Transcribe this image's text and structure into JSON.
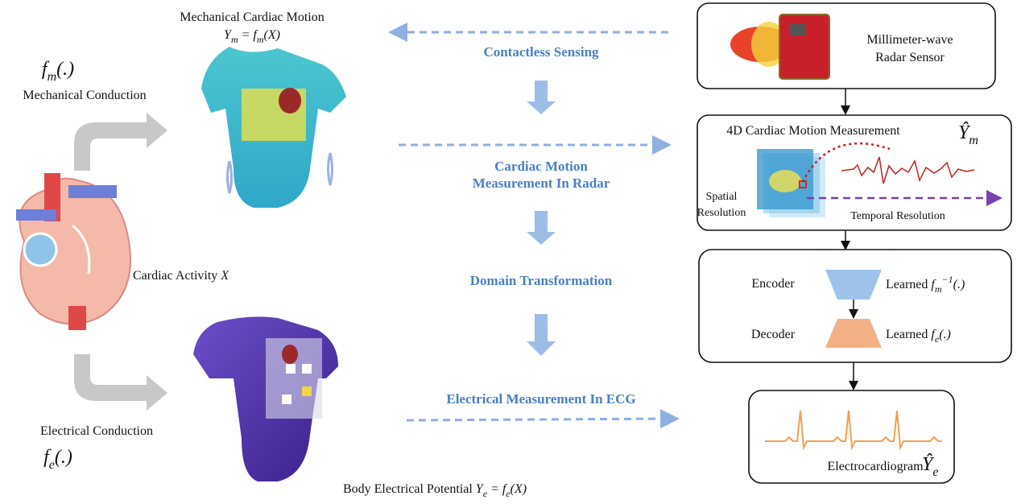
{
  "left": {
    "mech_func": [
      {
        "text": "f",
        "style": "math"
      },
      {
        "text": "m",
        "style": "sub"
      },
      {
        "text": "(.)",
        "style": "math"
      }
    ],
    "mech_label": "Mechanical Conduction",
    "activity": [
      {
        "text": "Cardiac Activity "
      },
      {
        "text": "X",
        "style": "math"
      }
    ],
    "elec_label": "Electrical Conduction",
    "elec_func": [
      {
        "text": "f",
        "style": "math"
      },
      {
        "text": "e",
        "style": "sub"
      },
      {
        "text": "(.)",
        "style": "math"
      }
    ]
  },
  "torso_top": {
    "title": "Mechanical Cardiac Motion",
    "formula": [
      {
        "text": "Y",
        "style": "math"
      },
      {
        "text": "m",
        "style": "sub"
      },
      {
        "text": " = f",
        "style": "math"
      },
      {
        "text": "m",
        "style": "sub"
      },
      {
        "text": "(X)",
        "style": "math"
      }
    ]
  },
  "torso_bottom": {
    "caption": [
      {
        "text": "Body Electrical Potential "
      },
      {
        "text": "Y",
        "style": "math"
      },
      {
        "text": "e",
        "style": "sub"
      },
      {
        "text": " = f",
        "style": "math"
      },
      {
        "text": "e",
        "style": "sub"
      },
      {
        "text": "(X)",
        "style": "math"
      }
    ]
  },
  "center": {
    "step1": "Contactless Sensing",
    "step2": [
      "Cardiac Motion",
      "Measurement In Radar"
    ],
    "step3": "Domain Transformation",
    "step4": "Electrical Measurement In ECG"
  },
  "right": {
    "radar": [
      "Millimeter-wave",
      "Radar Sensor"
    ],
    "measure_title": "4D Cardiac Motion Measurement",
    "measure_symbol": [
      {
        "text": "Ŷ",
        "style": "math"
      },
      {
        "text": "m",
        "style": "sub"
      }
    ],
    "spatial": [
      "Spatial",
      "Resolution"
    ],
    "temporal": "Temporal Resolution",
    "encoder": "Encoder",
    "encoder_fn": [
      {
        "text": "Learned "
      },
      {
        "text": "f",
        "style": "math"
      },
      {
        "text": "m",
        "style": "sub"
      },
      {
        "text": "−1",
        "style": "sup"
      },
      {
        "text": "(.)",
        "style": "math"
      }
    ],
    "decoder": "Decoder",
    "decoder_fn": [
      {
        "text": "Learned "
      },
      {
        "text": "f",
        "style": "math"
      },
      {
        "text": "e",
        "style": "sub"
      },
      {
        "text": "(.)",
        "style": "math"
      }
    ],
    "ecg": "Electrocardiogram",
    "ecg_symbol": [
      {
        "text": "Ŷ",
        "style": "math"
      },
      {
        "text": "e",
        "style": "sub"
      }
    ]
  }
}
